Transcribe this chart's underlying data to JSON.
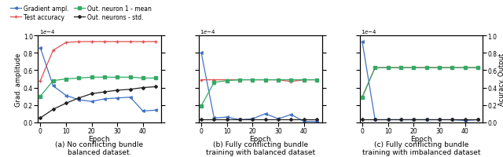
{
  "epochs": [
    0,
    5,
    10,
    15,
    20,
    25,
    30,
    35,
    40,
    45
  ],
  "subplot_a": {
    "grad_ampl": [
      0.86,
      0.42,
      0.31,
      0.26,
      0.24,
      0.27,
      0.28,
      0.29,
      0.13,
      0.14
    ],
    "test_acc": [
      0.48,
      0.83,
      0.92,
      0.93,
      0.93,
      0.93,
      0.93,
      0.93,
      0.93,
      0.93
    ],
    "neuron1_mean": [
      0.3,
      0.48,
      0.5,
      0.51,
      0.52,
      0.52,
      0.52,
      0.52,
      0.51,
      0.51
    ],
    "neurons_std": [
      0.05,
      0.15,
      0.22,
      0.28,
      0.33,
      0.35,
      0.37,
      0.38,
      0.4,
      0.41
    ],
    "title": "(a) No conflicting bundle\nbalanced dataset."
  },
  "subplot_b": {
    "grad_ampl": [
      0.8,
      0.05,
      0.06,
      0.03,
      0.04,
      0.1,
      0.04,
      0.09,
      0.01,
      0.01
    ],
    "test_acc": [
      0.49,
      0.49,
      0.49,
      0.49,
      0.49,
      0.49,
      0.49,
      0.47,
      0.49,
      0.49
    ],
    "neuron1_mean": [
      0.19,
      0.46,
      0.48,
      0.49,
      0.49,
      0.49,
      0.49,
      0.49,
      0.49,
      0.49
    ],
    "neurons_std": [
      0.03,
      0.03,
      0.03,
      0.03,
      0.03,
      0.03,
      0.03,
      0.03,
      0.03,
      0.03
    ],
    "title": "(b) Fully conflicting bundle\ntraining with balanced dataset"
  },
  "subplot_c": {
    "grad_ampl": [
      0.93,
      0.03,
      0.03,
      0.03,
      0.03,
      0.03,
      0.03,
      0.03,
      0.02,
      0.03
    ],
    "test_acc": [
      0.29,
      0.63,
      0.63,
      0.63,
      0.63,
      0.63,
      0.63,
      0.63,
      0.63,
      0.63
    ],
    "neuron1_mean": [
      0.29,
      0.63,
      0.63,
      0.63,
      0.63,
      0.63,
      0.63,
      0.63,
      0.63,
      0.63
    ],
    "neurons_std": [
      0.03,
      0.03,
      0.03,
      0.03,
      0.03,
      0.03,
      0.03,
      0.03,
      0.03,
      0.03
    ],
    "title": "(c) Fully conflicting bundle\ntraining with imbalanced dataset"
  },
  "colors": {
    "grad_ampl": "#4472c4",
    "test_acc": "#e05050",
    "neuron1_mean": "#33aa66",
    "neurons_std": "#222222"
  },
  "legend_labels": [
    "Gradient ampl.",
    "Test accuracy",
    "Out. neuron 1 - mean",
    "Out. neurons - std."
  ],
  "xlabel": "Epoch",
  "ylabel_left": "Grad. amplitude",
  "ylabel_right": "Acuracy. Output",
  "ylim_left": [
    0.0,
    1.0
  ],
  "ylim_right": [
    0.0,
    1.0
  ],
  "xticks": [
    0,
    10,
    20,
    30,
    40
  ],
  "yticks_left": [
    0.0,
    0.2,
    0.4,
    0.6,
    0.8,
    1.0
  ],
  "yticks_right": [
    0.0,
    0.2,
    0.4,
    0.6,
    0.8,
    1.0
  ]
}
